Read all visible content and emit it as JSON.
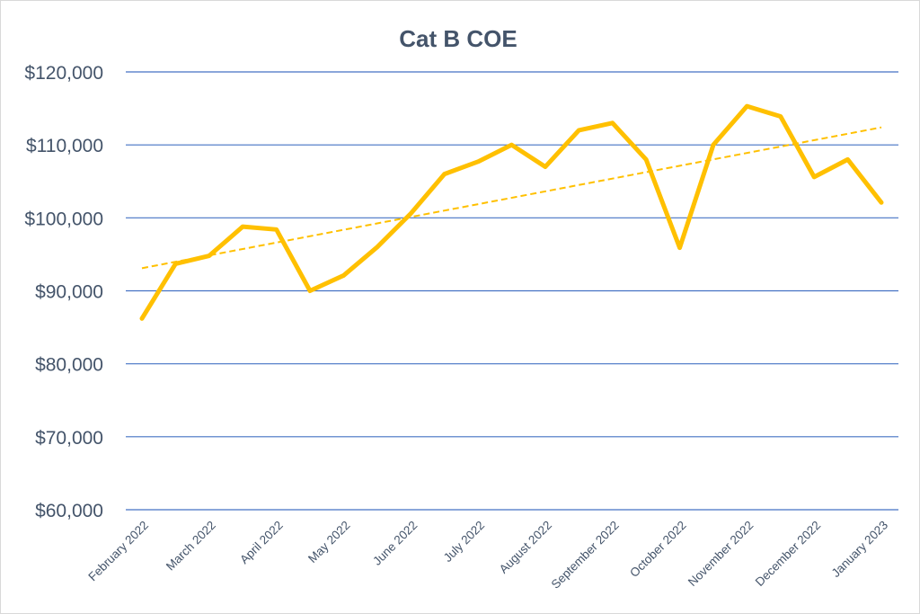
{
  "chart_data": {
    "type": "line",
    "title": "Cat B COE",
    "xlabel": "",
    "ylabel": "",
    "ylim": [
      60000,
      120000
    ],
    "yticks": [
      60000,
      70000,
      80000,
      90000,
      100000,
      110000,
      120000
    ],
    "ytick_labels": [
      "$60,000",
      "$70,000",
      "$80,000",
      "$90,000",
      "$100,000",
      "$110,000",
      "$120,000"
    ],
    "grid": true,
    "legend": "none",
    "categories": [
      "February 2022",
      "",
      "March 2022",
      "",
      "April 2022",
      "",
      "May 2022",
      "",
      "June 2022",
      "",
      "July 2022",
      "",
      "August 2022",
      "",
      "September 2022",
      "",
      "October 2022",
      "",
      "November 2022",
      "",
      "December 2022",
      "",
      "January 2023"
    ],
    "series": [
      {
        "values": [
          86200,
          93700,
          94800,
          98800,
          98400,
          90000,
          92100,
          96000,
          100600,
          106000,
          107700,
          110000,
          107000,
          112000,
          113000,
          108000,
          95900,
          110000,
          115300,
          113900,
          105600,
          108000,
          102100
        ],
        "color": "#FFC000"
      }
    ],
    "trendline": {
      "type": "linear",
      "start": 93100,
      "end": 112400,
      "color": "#FFC000",
      "style": "dashed"
    },
    "colors": {
      "grid": "#4472C4",
      "text": "#44546A"
    }
  }
}
